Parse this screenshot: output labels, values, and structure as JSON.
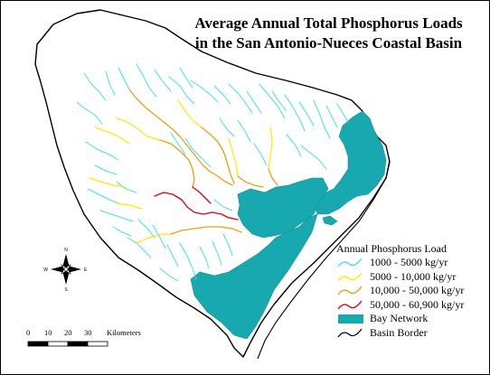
{
  "title": {
    "line1": "Average Annual Total Phosphorus Loads",
    "line2": "in the San Antonio-Nueces Coastal Basin"
  },
  "legend": {
    "title": "Annual Phosphorus Load",
    "items": [
      {
        "label": "1000 - 5000 kg/yr",
        "color": "#40E0F0",
        "symbol": "line"
      },
      {
        "label": "5000 - 10,000 kg/yr",
        "color": "#FFE800",
        "symbol": "line"
      },
      {
        "label": "10,000 - 50,000 kg/yr",
        "color": "#E8A010",
        "symbol": "line"
      },
      {
        "label": "50,000 - 60,900 kg/yr",
        "color": "#E00010",
        "symbol": "line"
      },
      {
        "label": "Bay Network",
        "color": "#18A8B0",
        "symbol": "fill"
      },
      {
        "label": "Basin Border",
        "color": "#000000",
        "symbol": "line"
      }
    ]
  },
  "scale_bar": {
    "ticks": [
      "0",
      "10",
      "20",
      "30"
    ],
    "unit": "Kilometers"
  },
  "north_arrow": {
    "labels": {
      "n": "N",
      "s": "S",
      "e": "E",
      "w": "W"
    }
  }
}
